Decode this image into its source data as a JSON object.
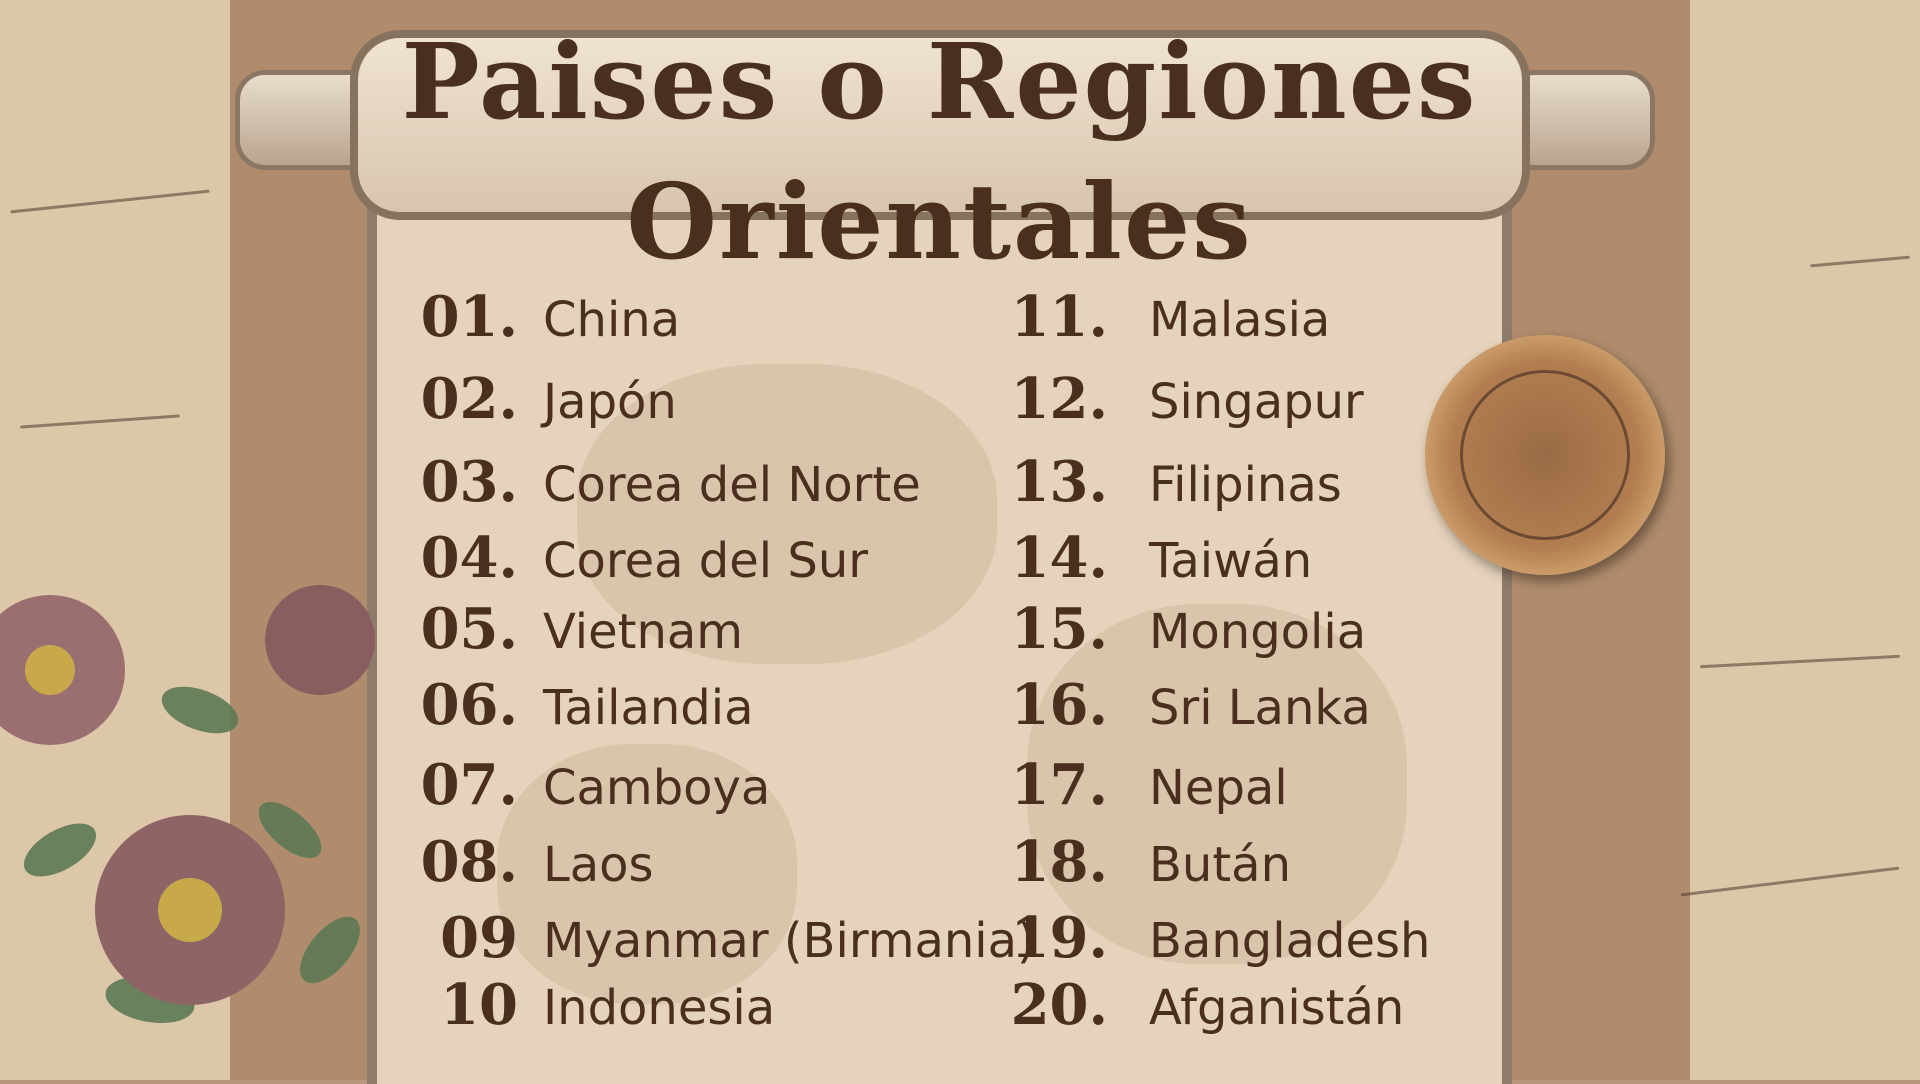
{
  "title": {
    "line1": "Paises o Regiones",
    "line2": "Orientales"
  },
  "left_list": [
    {
      "num": "01.",
      "name": "China"
    },
    {
      "num": "02.",
      "name": "Japón"
    },
    {
      "num": "03.",
      "name": "Corea del Norte"
    },
    {
      "num": "04.",
      "name": "Corea del Sur"
    },
    {
      "num": "05.",
      "name": "Vietnam"
    },
    {
      "num": "06.",
      "name": "Tailandia"
    },
    {
      "num": "07.",
      "name": "Camboya"
    },
    {
      "num": "08.",
      "name": "Laos"
    },
    {
      "num": "09",
      "name": "Myanmar (Birmania)"
    },
    {
      "num": "10",
      "name": "Indonesia"
    }
  ],
  "right_list": [
    {
      "num": "11.",
      "name": "Malasia"
    },
    {
      "num": "12.",
      "name": "Singapur"
    },
    {
      "num": "13.",
      "name": "Filipinas"
    },
    {
      "num": "14.",
      "name": "Taiwán"
    },
    {
      "num": "15.",
      "name": "Mongolia"
    },
    {
      "num": "16.",
      "name": "Sri Lanka"
    },
    {
      "num": "17.",
      "name": "Nepal"
    },
    {
      "num": "18.",
      "name": "Bután"
    },
    {
      "num": "19.",
      "name": "Bangladesh"
    },
    {
      "num": "20.",
      "name": "Afganistán"
    }
  ],
  "colors": {
    "text": "#4a2f1f",
    "scroll": "#e6d3bc",
    "kraft": "#b08c6c",
    "seal": "#b27e50"
  },
  "decor": [
    "wax-seal",
    "roses",
    "handwriting-paper",
    "parchment-scroll"
  ]
}
